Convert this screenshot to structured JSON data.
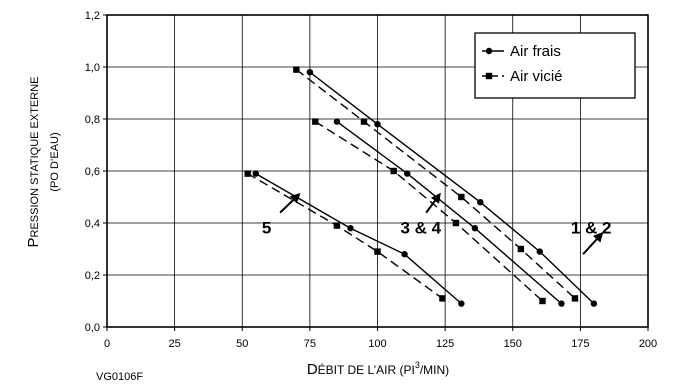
{
  "chart_data": {
    "type": "line",
    "xlabel": {
      "lead": "D",
      "rest": "ÉBIT DE L’AIR (PI",
      "sup": "3",
      "tail": "/MIN)"
    },
    "ylabel": {
      "line1_lead": "P",
      "line1_rest": "RESSION STATIQUE EXTERNE",
      "line2": "(PO D’EAU)"
    },
    "code": "VG0106F",
    "xlim": [
      0,
      200
    ],
    "ylim": [
      0,
      1.2
    ],
    "xticks": [
      "0",
      "25",
      "50",
      "75",
      "100",
      "125",
      "150",
      "175",
      "200"
    ],
    "yticks": [
      "0,0",
      "0,2",
      "0,4",
      "0,6",
      "0,8",
      "1,0",
      "1,2"
    ],
    "grid": true,
    "legend": {
      "position": "top-right",
      "entries": [
        {
          "label": "Air frais",
          "marker": "circle",
          "dash": "solid"
        },
        {
          "label": "Air vicié",
          "marker": "square",
          "dash": "dashed"
        }
      ]
    },
    "series": [
      {
        "legend_ref": 0,
        "group": "1 & 2",
        "points": [
          [
            75,
            0.98
          ],
          [
            100,
            0.78
          ],
          [
            138,
            0.48
          ],
          [
            160,
            0.29
          ],
          [
            180,
            0.09
          ]
        ]
      },
      {
        "legend_ref": 1,
        "group": "1 & 2",
        "points": [
          [
            70,
            0.99
          ],
          [
            95,
            0.79
          ],
          [
            131,
            0.5
          ],
          [
            153,
            0.3
          ],
          [
            173,
            0.11
          ]
        ]
      },
      {
        "legend_ref": 0,
        "group": "3 & 4",
        "points": [
          [
            85,
            0.79
          ],
          [
            111,
            0.59
          ],
          [
            136,
            0.38
          ],
          [
            168,
            0.09
          ]
        ]
      },
      {
        "legend_ref": 1,
        "group": "3 & 4",
        "points": [
          [
            77,
            0.79
          ],
          [
            106,
            0.6
          ],
          [
            129,
            0.4
          ],
          [
            161,
            0.1
          ]
        ]
      },
      {
        "legend_ref": 0,
        "group": "5",
        "points": [
          [
            55,
            0.59
          ],
          [
            90,
            0.38
          ],
          [
            110,
            0.28
          ],
          [
            131,
            0.09
          ]
        ]
      },
      {
        "legend_ref": 1,
        "group": "5",
        "points": [
          [
            52,
            0.59
          ],
          [
            85,
            0.39
          ],
          [
            100,
            0.29
          ],
          [
            124,
            0.11
          ]
        ]
      }
    ],
    "annotations": [
      {
        "text": "5",
        "text_at": [
          59,
          0.36
        ],
        "arrow_from": [
          64,
          0.44
        ],
        "arrow_to": [
          71,
          0.51
        ]
      },
      {
        "text": "3 & 4",
        "text_at": [
          116,
          0.36
        ],
        "arrow_from": [
          118,
          0.44
        ],
        "arrow_to": [
          123,
          0.51
        ]
      },
      {
        "text": "1 & 2",
        "text_at": [
          179,
          0.36
        ],
        "arrow_from": [
          176,
          0.28
        ],
        "arrow_to": [
          183,
          0.36
        ]
      }
    ]
  }
}
